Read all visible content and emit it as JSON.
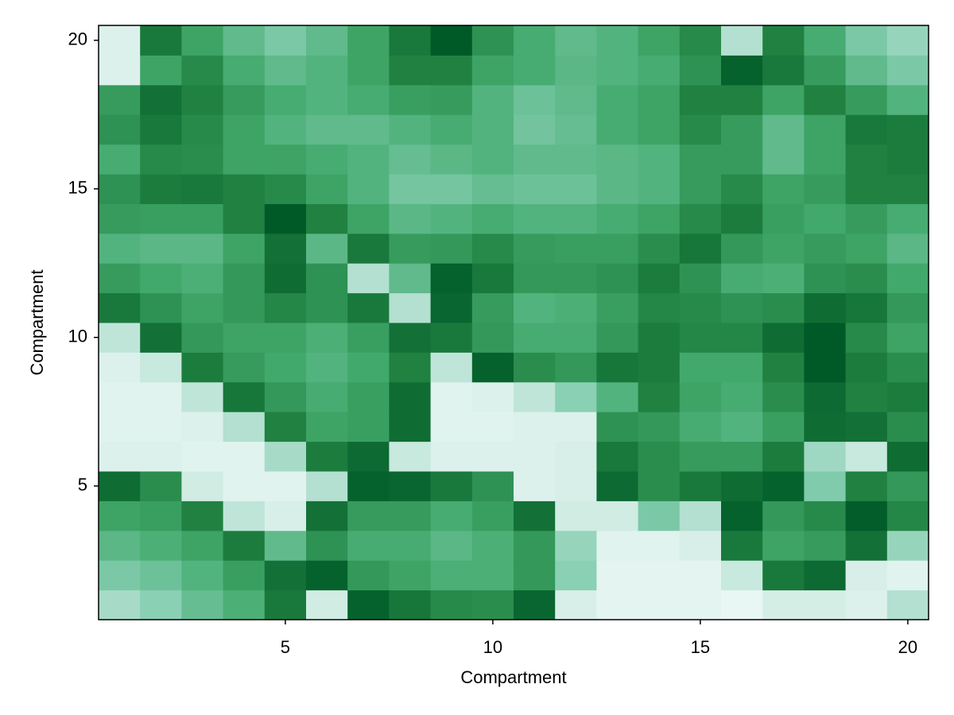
{
  "chart_data": {
    "type": "heatmap",
    "xlabel": "Compartment",
    "ylabel": "Compartment",
    "x": [
      1,
      2,
      3,
      4,
      5,
      6,
      7,
      8,
      9,
      10,
      11,
      12,
      13,
      14,
      15,
      16,
      17,
      18,
      19,
      20
    ],
    "y": [
      1,
      2,
      3,
      4,
      5,
      6,
      7,
      8,
      9,
      10,
      11,
      12,
      13,
      14,
      15,
      16,
      17,
      18,
      19,
      20
    ],
    "z": [
      [
        0.18,
        0.25,
        0.38,
        0.48,
        0.8,
        0.08,
        0.95,
        0.82,
        0.7,
        0.68,
        0.92,
        0.06,
        0.03,
        0.03,
        0.03,
        0.02,
        0.07,
        0.07,
        0.05,
        0.15
      ],
      [
        0.3,
        0.35,
        0.45,
        0.58,
        0.85,
        0.95,
        0.62,
        0.55,
        0.48,
        0.48,
        0.62,
        0.25,
        0.03,
        0.03,
        0.03,
        0.1,
        0.8,
        0.9,
        0.06,
        0.04
      ],
      [
        0.42,
        0.48,
        0.55,
        0.78,
        0.4,
        0.65,
        0.5,
        0.5,
        0.42,
        0.48,
        0.62,
        0.22,
        0.04,
        0.04,
        0.06,
        0.8,
        0.55,
        0.6,
        0.85,
        0.22
      ],
      [
        0.55,
        0.58,
        0.75,
        0.12,
        0.06,
        0.85,
        0.6,
        0.6,
        0.5,
        0.58,
        0.85,
        0.08,
        0.08,
        0.3,
        0.15,
        0.95,
        0.62,
        0.7,
        0.98,
        0.72
      ],
      [
        0.88,
        0.68,
        0.08,
        0.04,
        0.04,
        0.15,
        0.95,
        0.92,
        0.8,
        0.65,
        0.05,
        0.06,
        0.9,
        0.68,
        0.8,
        0.88,
        0.95,
        0.28,
        0.75,
        0.62
      ],
      [
        0.05,
        0.05,
        0.04,
        0.04,
        0.18,
        0.78,
        0.9,
        0.1,
        0.05,
        0.05,
        0.05,
        0.06,
        0.8,
        0.68,
        0.6,
        0.6,
        0.78,
        0.2,
        0.1,
        0.88
      ],
      [
        0.04,
        0.04,
        0.05,
        0.15,
        0.75,
        0.55,
        0.58,
        0.88,
        0.04,
        0.04,
        0.05,
        0.05,
        0.65,
        0.62,
        0.5,
        0.45,
        0.58,
        0.88,
        0.85,
        0.68
      ],
      [
        0.04,
        0.04,
        0.12,
        0.82,
        0.62,
        0.5,
        0.58,
        0.88,
        0.04,
        0.05,
        0.12,
        0.25,
        0.45,
        0.75,
        0.55,
        0.5,
        0.68,
        0.9,
        0.75,
        0.78
      ],
      [
        0.05,
        0.1,
        0.78,
        0.6,
        0.52,
        0.45,
        0.52,
        0.75,
        0.12,
        0.95,
        0.68,
        0.62,
        0.82,
        0.78,
        0.52,
        0.52,
        0.75,
        1.0,
        0.78,
        0.68
      ],
      [
        0.12,
        0.85,
        0.62,
        0.55,
        0.55,
        0.48,
        0.58,
        0.85,
        0.8,
        0.62,
        0.5,
        0.5,
        0.62,
        0.78,
        0.72,
        0.72,
        0.88,
        1.0,
        0.7,
        0.55
      ],
      [
        0.8,
        0.65,
        0.55,
        0.62,
        0.72,
        0.65,
        0.8,
        0.15,
        0.92,
        0.6,
        0.45,
        0.48,
        0.58,
        0.72,
        0.7,
        0.65,
        0.68,
        0.88,
        0.82,
        0.62
      ],
      [
        0.6,
        0.52,
        0.48,
        0.62,
        0.88,
        0.65,
        0.15,
        0.4,
        0.95,
        0.8,
        0.62,
        0.62,
        0.65,
        0.78,
        0.65,
        0.5,
        0.48,
        0.65,
        0.68,
        0.52
      ],
      [
        0.45,
        0.42,
        0.42,
        0.55,
        0.85,
        0.42,
        0.8,
        0.6,
        0.62,
        0.7,
        0.6,
        0.58,
        0.58,
        0.68,
        0.82,
        0.62,
        0.55,
        0.6,
        0.55,
        0.42
      ],
      [
        0.6,
        0.58,
        0.58,
        0.75,
        1.0,
        0.75,
        0.55,
        0.42,
        0.45,
        0.5,
        0.45,
        0.45,
        0.5,
        0.55,
        0.7,
        0.78,
        0.58,
        0.52,
        0.6,
        0.5
      ],
      [
        0.65,
        0.78,
        0.8,
        0.75,
        0.7,
        0.55,
        0.45,
        0.32,
        0.32,
        0.38,
        0.35,
        0.35,
        0.42,
        0.45,
        0.6,
        0.7,
        0.55,
        0.6,
        0.75,
        0.75
      ],
      [
        0.5,
        0.7,
        0.68,
        0.55,
        0.55,
        0.5,
        0.45,
        0.38,
        0.42,
        0.45,
        0.4,
        0.4,
        0.42,
        0.45,
        0.6,
        0.6,
        0.4,
        0.55,
        0.75,
        0.78
      ],
      [
        0.65,
        0.8,
        0.7,
        0.55,
        0.45,
        0.4,
        0.4,
        0.45,
        0.5,
        0.45,
        0.33,
        0.38,
        0.5,
        0.55,
        0.7,
        0.6,
        0.4,
        0.55,
        0.8,
        0.78
      ],
      [
        0.6,
        0.85,
        0.75,
        0.6,
        0.5,
        0.45,
        0.5,
        0.58,
        0.6,
        0.45,
        0.35,
        0.4,
        0.5,
        0.55,
        0.75,
        0.75,
        0.55,
        0.75,
        0.6,
        0.45
      ],
      [
        0.05,
        0.55,
        0.7,
        0.5,
        0.4,
        0.45,
        0.55,
        0.75,
        0.75,
        0.55,
        0.5,
        0.42,
        0.45,
        0.5,
        0.65,
        0.95,
        0.8,
        0.6,
        0.4,
        0.3
      ],
      [
        0.05,
        0.8,
        0.55,
        0.4,
        0.3,
        0.4,
        0.55,
        0.8,
        1.0,
        0.65,
        0.5,
        0.4,
        0.45,
        0.55,
        0.7,
        0.15,
        0.75,
        0.5,
        0.3,
        0.22
      ]
    ],
    "colormap": [
      "#e8f6f4",
      "#84cdb0",
      "#43ab6e",
      "#1f8040",
      "#005a28"
    ],
    "xlim": [
      0.5,
      20.5
    ],
    "ylim": [
      0.5,
      20.5
    ],
    "xticks": [
      5,
      10,
      15,
      20
    ],
    "yticks": [
      5,
      10,
      15,
      20
    ]
  }
}
